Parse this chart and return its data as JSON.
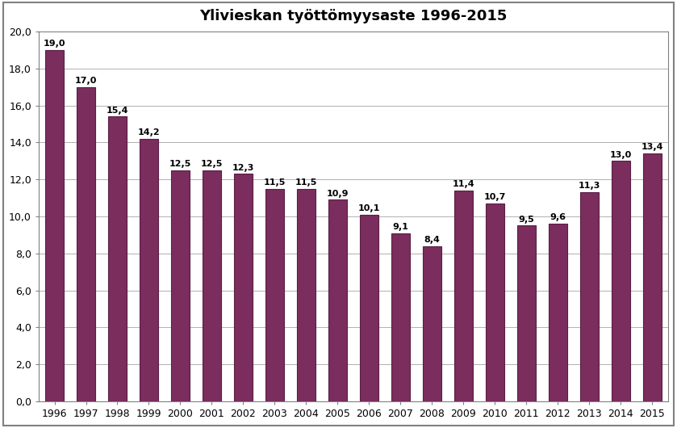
{
  "title": "Ylivieskan työttömyysaste 1996-2015",
  "categories": [
    1996,
    1997,
    1998,
    1999,
    2000,
    2001,
    2002,
    2003,
    2004,
    2005,
    2006,
    2007,
    2008,
    2009,
    2010,
    2011,
    2012,
    2013,
    2014,
    2015
  ],
  "values": [
    19.0,
    17.0,
    15.4,
    14.2,
    12.5,
    12.5,
    12.3,
    11.5,
    11.5,
    10.9,
    10.1,
    9.1,
    8.4,
    11.4,
    10.7,
    9.5,
    9.6,
    11.3,
    13.0,
    13.4
  ],
  "bar_color": "#7B2D5E",
  "bar_edge_color": "#5a1f44",
  "title_fontsize": 13,
  "label_fontsize": 8,
  "tick_fontsize": 9,
  "ylim": [
    0,
    20.0
  ],
  "yticks": [
    0.0,
    2.0,
    4.0,
    6.0,
    8.0,
    10.0,
    12.0,
    14.0,
    16.0,
    18.0,
    20.0
  ],
  "background_color": "#ffffff",
  "grid_color": "#b0b0b0",
  "spine_color": "#808080",
  "bar_width": 0.6,
  "figure_border_color": "#808080"
}
